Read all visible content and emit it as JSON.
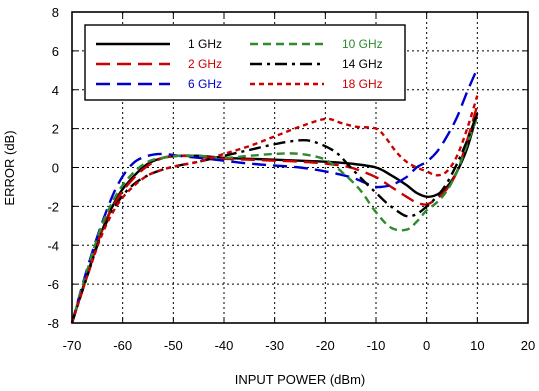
{
  "chart_data": {
    "type": "line",
    "xlabel": "INPUT POWER (dBm)",
    "ylabel": "ERROR (dB)",
    "xlim": [
      -70,
      20
    ],
    "ylim": [
      -8,
      8
    ],
    "xticks": [
      -70,
      -60,
      -50,
      -40,
      -30,
      -20,
      -10,
      0,
      10,
      20
    ],
    "yticks": [
      -8,
      -6,
      -4,
      -2,
      0,
      2,
      4,
      6,
      8
    ],
    "grid": "dotted",
    "legend_position": "top-left",
    "series": [
      {
        "name": "1 GHz",
        "color": "#000000",
        "dash": "solid",
        "x": [
          -70,
          -67,
          -64,
          -61,
          -58,
          -55,
          -52,
          -49,
          -45,
          -40,
          -35,
          -30,
          -25,
          -20,
          -15,
          -10,
          -7,
          -4,
          -2,
          0,
          2,
          4,
          6,
          8,
          10
        ],
        "y": [
          -8,
          -5.5,
          -3.2,
          -1.5,
          -0.5,
          0.2,
          0.5,
          0.6,
          0.6,
          0.5,
          0.45,
          0.4,
          0.35,
          0.3,
          0.2,
          0,
          -0.4,
          -0.9,
          -1.3,
          -1.5,
          -1.4,
          -1,
          -0.2,
          1,
          2.8
        ]
      },
      {
        "name": "2 GHz",
        "color": "#cc0000",
        "dash": "long-dash",
        "x": [
          -70,
          -67,
          -64,
          -61,
          -58,
          -55,
          -52,
          -49,
          -45,
          -40,
          -35,
          -30,
          -25,
          -20,
          -15,
          -10,
          -7,
          -4,
          -2,
          0,
          2,
          4,
          6,
          8,
          10
        ],
        "y": [
          -8,
          -5.5,
          -3.2,
          -1.6,
          -0.6,
          0.1,
          0.5,
          0.6,
          0.55,
          0.45,
          0.4,
          0.35,
          0.3,
          0.2,
          0,
          -0.5,
          -1,
          -1.5,
          -1.8,
          -1.9,
          -1.6,
          -1.1,
          -0.2,
          1.4,
          3.2
        ]
      },
      {
        "name": "6 GHz",
        "color": "#0000cc",
        "dash": "long-dash",
        "x": [
          -70,
          -67,
          -64,
          -61,
          -58,
          -55,
          -52,
          -49,
          -45,
          -40,
          -35,
          -30,
          -25,
          -20,
          -15,
          -12,
          -10,
          -7,
          -4,
          -2,
          0,
          2,
          4,
          6,
          8,
          10
        ],
        "y": [
          -8,
          -5.2,
          -2.8,
          -0.9,
          0.2,
          0.6,
          0.7,
          0.6,
          0.5,
          0.35,
          0.2,
          0.1,
          0,
          -0.2,
          -0.5,
          -0.8,
          -1,
          -0.9,
          -0.5,
          0,
          0.3,
          0.8,
          1.6,
          2.6,
          3.9,
          5.1
        ]
      },
      {
        "name": "10 GHz",
        "color": "#2e8b2e",
        "dash": "medium-dash",
        "x": [
          -70,
          -67,
          -64,
          -61,
          -58,
          -55,
          -52,
          -49,
          -45,
          -40,
          -35,
          -30,
          -25,
          -20,
          -16,
          -13,
          -10,
          -7,
          -4,
          -2,
          0,
          2,
          4,
          6,
          8,
          10
        ],
        "y": [
          -8,
          -5.3,
          -2.9,
          -1.3,
          -0.3,
          0.3,
          0.5,
          0.6,
          0.6,
          0.5,
          0.6,
          0.7,
          0.7,
          0.4,
          -0.4,
          -1.2,
          -2.3,
          -3.1,
          -3.2,
          -2.8,
          -2.2,
          -1.8,
          -1.2,
          -0.2,
          1.2,
          2.6
        ]
      },
      {
        "name": "14 GHz",
        "color": "#000000",
        "dash": "dash-dot",
        "x": [
          -70,
          -67,
          -64,
          -61,
          -58,
          -55,
          -52,
          -49,
          -45,
          -40,
          -35,
          -30,
          -25,
          -22,
          -18,
          -15,
          -12,
          -10,
          -8,
          -6,
          -4,
          -2,
          0,
          2,
          4,
          6,
          8,
          10
        ],
        "y": [
          -8,
          -5.6,
          -3.3,
          -1.8,
          -0.9,
          -0.4,
          -0.1,
          0.1,
          0.3,
          0.6,
          0.9,
          1.2,
          1.4,
          1.3,
          0.8,
          0,
          -0.8,
          -1.3,
          -1.8,
          -2.2,
          -2.5,
          -2.4,
          -2,
          -1.5,
          -0.8,
          0.2,
          1.4,
          2.8
        ]
      },
      {
        "name": "18 GHz",
        "color": "#cc0000",
        "dash": "short-dash",
        "x": [
          -70,
          -67,
          -64,
          -61,
          -58,
          -55,
          -52,
          -49,
          -45,
          -40,
          -35,
          -30,
          -25,
          -20,
          -17,
          -14,
          -10,
          -8,
          -6,
          -4,
          -2,
          0,
          2,
          4,
          6,
          8,
          10
        ],
        "y": [
          -8,
          -5.6,
          -3.4,
          -1.9,
          -1,
          -0.4,
          -0.1,
          0.1,
          0.3,
          0.7,
          1.1,
          1.6,
          2.1,
          2.5,
          2.3,
          2.1,
          2,
          1.5,
          0.8,
          0.3,
          0,
          -0.2,
          -0.4,
          -0.2,
          0.6,
          2,
          3.7
        ]
      }
    ]
  }
}
